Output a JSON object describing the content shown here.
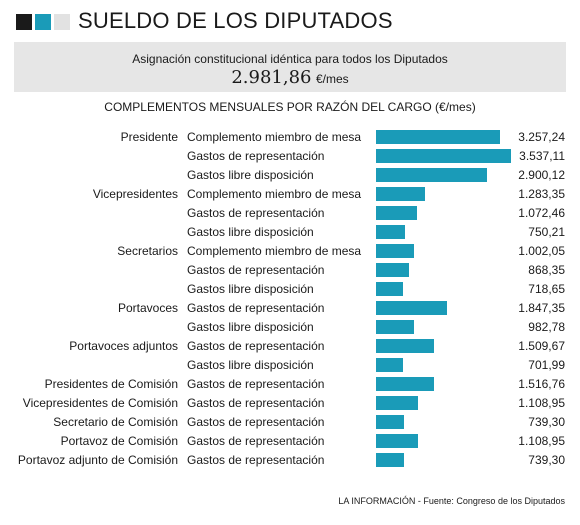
{
  "header": {
    "title": "SUELDO DE LOS DIPUTADOS",
    "colors": {
      "dark": "#1a1a1a",
      "accent": "#1a9bb8",
      "light": "#e2e2e2"
    }
  },
  "summary": {
    "subtitle": "Asignación constitucional idéntica para todos los Diputados",
    "amount": "2.981,86",
    "unit": "€/mes"
  },
  "chart_data": {
    "type": "bar",
    "orientation": "horizontal",
    "title": "COMPLEMENTOS MENSUALES POR RAZÓN DEL CARGO (€/mes)",
    "bar_color": "#1a9bb8",
    "xlim": [
      0,
      3537.11
    ],
    "rows": [
      {
        "group": "Presidente",
        "category": "Complemento miembro de mesa",
        "value": 3257.24,
        "label": "3.257,24"
      },
      {
        "group": "",
        "category": "Gastos de representación",
        "value": 3537.11,
        "label": "3.537,11"
      },
      {
        "group": "",
        "category": "Gastos libre disposición",
        "value": 2900.12,
        "label": "2.900,12"
      },
      {
        "group": "Vicepresidentes",
        "category": "Complemento miembro de mesa",
        "value": 1283.35,
        "label": "1.283,35"
      },
      {
        "group": "",
        "category": "Gastos de representación",
        "value": 1072.46,
        "label": "1.072,46"
      },
      {
        "group": "",
        "category": "Gastos libre disposición",
        "value": 750.21,
        "label": "750,21"
      },
      {
        "group": "Secretarios",
        "category": "Complemento miembro de mesa",
        "value": 1002.05,
        "label": "1.002,05"
      },
      {
        "group": "",
        "category": "Gastos de representación",
        "value": 868.35,
        "label": "868,35"
      },
      {
        "group": "",
        "category": "Gastos libre disposición",
        "value": 718.65,
        "label": "718,65"
      },
      {
        "group": "Portavoces",
        "category": "Gastos de representación",
        "value": 1847.35,
        "label": "1.847,35"
      },
      {
        "group": "",
        "category": "Gastos libre disposición",
        "value": 982.78,
        "label": "982,78"
      },
      {
        "group": "Portavoces adjuntos",
        "category": "Gastos de representación",
        "value": 1509.67,
        "label": "1.509,67"
      },
      {
        "group": "",
        "category": "Gastos libre disposición",
        "value": 701.99,
        "label": "701,99"
      },
      {
        "group": "Presidentes de Comisión",
        "category": "Gastos de representación",
        "value": 1516.76,
        "label": "1.516,76"
      },
      {
        "group": "Vicepresidentes de Comisión",
        "category": "Gastos de representación",
        "value": 1108.95,
        "label": "1.108,95"
      },
      {
        "group": "Secretario de Comisión",
        "category": "Gastos de representación",
        "value": 739.3,
        "label": "739,30"
      },
      {
        "group": "Portavoz de Comisión",
        "category": "Gastos de representación",
        "value": 1108.95,
        "label": "1.108,95"
      },
      {
        "group": "Portavoz adjunto de Comisión",
        "category": "Gastos de representación",
        "value": 739.3,
        "label": "739,30"
      }
    ]
  },
  "footer": {
    "source": "LA INFORMACIÓN - Fuente: Congreso de los Diputados"
  }
}
